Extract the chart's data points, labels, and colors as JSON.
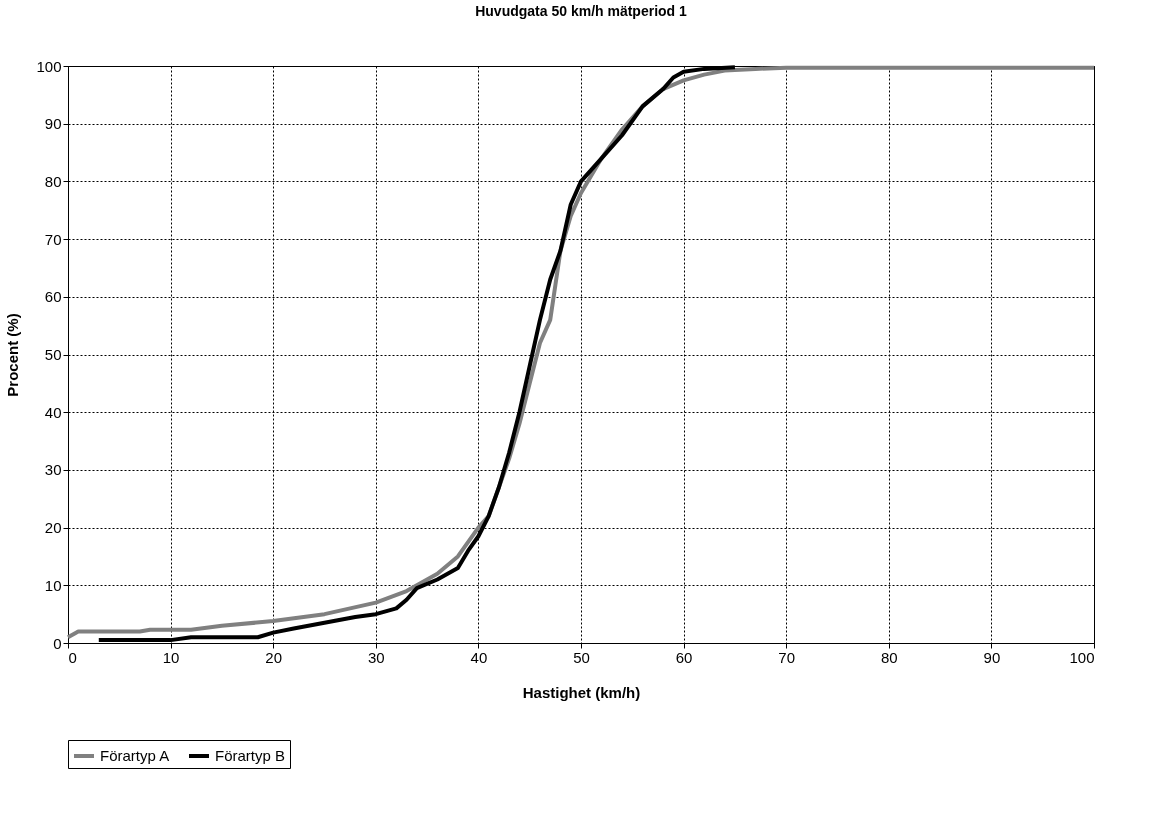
{
  "chart_data": {
    "type": "line",
    "title": "Huvudgata 50 km/h mätperiod 1",
    "xlabel": "Hastighet (km/h)",
    "ylabel": "Procent (%)",
    "xlim": [
      0,
      100
    ],
    "xticks": [
      0,
      10,
      20,
      30,
      40,
      50,
      60,
      70,
      80,
      90,
      100
    ],
    "ylim": [
      0,
      100
    ],
    "yticks": [
      0,
      10,
      20,
      30,
      40,
      50,
      60,
      70,
      80,
      90,
      100
    ],
    "grid": true,
    "legend": "bottom",
    "line_style": "solid",
    "series": [
      {
        "name": "Förartyp A",
        "color": "#808080",
        "x": [
          0,
          1,
          7,
          8,
          12,
          15,
          20,
          25,
          30,
          33,
          36,
          38,
          40,
          41,
          42,
          43,
          44,
          45,
          46,
          47,
          47.5,
          48,
          49,
          50,
          52,
          54,
          56,
          58,
          60,
          62,
          64,
          67,
          70,
          100
        ],
        "values": [
          1,
          2,
          2,
          2.3,
          2.3,
          3,
          3.8,
          5,
          7,
          9,
          12,
          15,
          20,
          22,
          27,
          32,
          38,
          45,
          52,
          56,
          62,
          68,
          74,
          78,
          84,
          89,
          93,
          96,
          97.5,
          98.5,
          99.2,
          99.5,
          99.7,
          99.7
        ]
      },
      {
        "name": "Förartyp B",
        "color": "#000000",
        "x": [
          3,
          10,
          12,
          18.5,
          20,
          22,
          25,
          28,
          30,
          32,
          33,
          34,
          36,
          38,
          39,
          40,
          41,
          42,
          43,
          44,
          45,
          46,
          47,
          48,
          49,
          50,
          51,
          52,
          54,
          56,
          58,
          59,
          60,
          62,
          65
        ],
        "values": [
          0.5,
          0.5,
          1,
          1,
          1.8,
          2.5,
          3.5,
          4.5,
          5,
          6,
          7.5,
          9.5,
          11,
          13,
          16,
          18.5,
          22,
          27,
          33,
          40,
          48,
          56,
          63,
          68,
          76,
          80,
          82,
          84,
          88,
          93,
          96,
          98,
          99,
          99.5,
          99.8
        ]
      }
    ]
  }
}
